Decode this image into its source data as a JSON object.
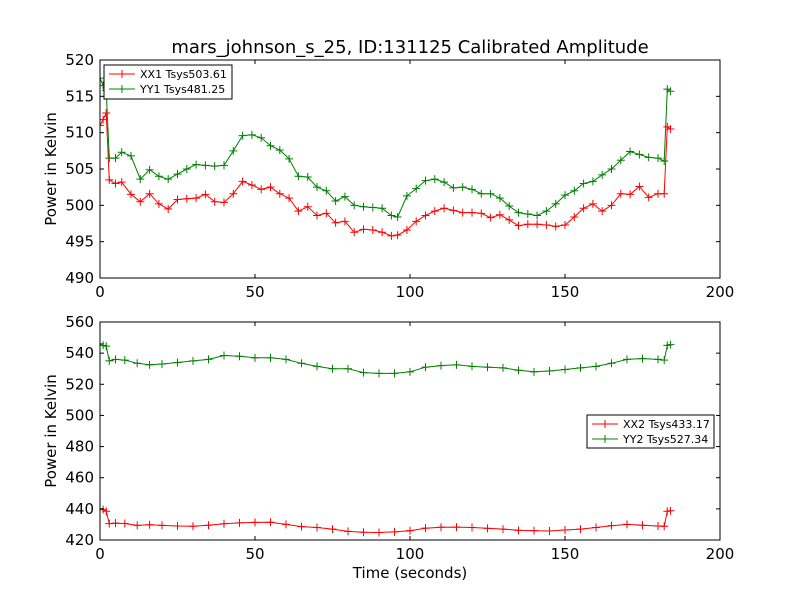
{
  "figure": {
    "title": "mars_johnson_s_25, ID:131125 Calibrated Amplitude",
    "xlabel": "Time (seconds)"
  },
  "chart_data": [
    {
      "type": "line",
      "ylabel": "Power in Kelvin",
      "xlim": [
        0,
        200
      ],
      "ylim": [
        490,
        520
      ],
      "xticks": [
        "0",
        "50",
        "100",
        "150",
        "200"
      ],
      "yticks": [
        "490",
        "495",
        "500",
        "505",
        "510",
        "515",
        "520"
      ],
      "grid": false,
      "legend": "upper-left",
      "series": [
        {
          "name": "XX1 Tsys503.61",
          "color": "#ff0000",
          "marker": "+",
          "x": [
            0,
            1,
            2,
            3,
            5,
            7,
            10,
            13,
            16,
            19,
            22,
            25,
            28,
            31,
            34,
            37,
            40,
            43,
            46,
            49,
            52,
            55,
            58,
            61,
            64,
            67,
            70,
            73,
            76,
            79,
            82,
            85,
            88,
            91,
            94,
            96,
            99,
            102,
            105,
            108,
            111,
            114,
            117,
            120,
            123,
            126,
            129,
            132,
            135,
            138,
            141,
            144,
            147,
            150,
            153,
            156,
            159,
            162,
            165,
            168,
            171,
            174,
            177,
            180,
            182,
            183,
            184
          ],
          "y": [
            511.0,
            511.8,
            512.7,
            503.5,
            503.0,
            503.2,
            501.5,
            500.5,
            501.6,
            500.2,
            499.5,
            500.8,
            500.9,
            501.0,
            501.5,
            500.5,
            500.4,
            501.6,
            503.3,
            502.8,
            502.2,
            502.5,
            501.6,
            501.0,
            499.2,
            499.8,
            498.6,
            498.9,
            497.6,
            497.8,
            496.3,
            496.7,
            496.6,
            496.3,
            495.8,
            495.9,
            496.6,
            497.8,
            498.6,
            499.2,
            499.6,
            499.3,
            499.0,
            499.0,
            498.9,
            498.3,
            498.7,
            498.0,
            497.2,
            497.4,
            497.4,
            497.3,
            497.1,
            497.3,
            498.4,
            499.6,
            500.2,
            499.2,
            500.0,
            501.6,
            501.5,
            502.6,
            501.1,
            501.6,
            501.6,
            510.8,
            510.5
          ]
        },
        {
          "name": "YY1 Tsys481.25",
          "color": "#008000",
          "marker": "+",
          "x": [
            0,
            1,
            2,
            3,
            5,
            7,
            10,
            13,
            16,
            19,
            22,
            25,
            28,
            31,
            34,
            37,
            40,
            43,
            46,
            49,
            52,
            55,
            58,
            61,
            64,
            67,
            70,
            73,
            76,
            79,
            82,
            85,
            88,
            91,
            94,
            96,
            99,
            102,
            105,
            108,
            111,
            114,
            117,
            120,
            123,
            126,
            129,
            132,
            135,
            138,
            141,
            144,
            147,
            150,
            153,
            156,
            159,
            162,
            165,
            168,
            171,
            174,
            177,
            180,
            182,
            183,
            184
          ],
          "y": [
            517.5,
            516.5,
            515.8,
            506.5,
            506.5,
            507.3,
            506.8,
            503.6,
            504.9,
            504.0,
            503.6,
            504.3,
            505.0,
            505.6,
            505.5,
            505.4,
            505.5,
            507.5,
            509.6,
            509.7,
            509.3,
            508.2,
            507.6,
            506.4,
            504.0,
            503.9,
            502.5,
            502.0,
            500.6,
            501.2,
            500.0,
            499.8,
            499.7,
            499.6,
            498.6,
            498.4,
            501.3,
            502.3,
            503.4,
            503.6,
            503.2,
            502.4,
            502.5,
            502.2,
            501.6,
            501.6,
            501.0,
            499.9,
            499.0,
            498.8,
            498.6,
            499.2,
            500.2,
            501.4,
            502.0,
            503.0,
            503.3,
            504.2,
            505.0,
            506.2,
            507.4,
            507.0,
            506.6,
            506.5,
            506.1,
            516.0,
            515.7
          ]
        }
      ]
    },
    {
      "type": "line",
      "ylabel": "Power in Kelvin",
      "xlim": [
        0,
        200
      ],
      "ylim": [
        420,
        560
      ],
      "xticks": [
        "0",
        "50",
        "100",
        "150",
        "200"
      ],
      "yticks": [
        "420",
        "440",
        "460",
        "480",
        "500",
        "520",
        "540",
        "560"
      ],
      "grid": false,
      "legend": "center-right",
      "series": [
        {
          "name": "XX2 Tsys433.17",
          "color": "#ff0000",
          "marker": "+",
          "x": [
            0,
            1,
            2,
            3,
            5,
            8,
            12,
            16,
            20,
            25,
            30,
            35,
            40,
            45,
            50,
            55,
            60,
            65,
            70,
            75,
            80,
            85,
            90,
            95,
            100,
            105,
            110,
            115,
            120,
            125,
            130,
            135,
            140,
            145,
            150,
            155,
            160,
            165,
            170,
            175,
            180,
            182,
            183,
            184
          ],
          "y": [
            440.0,
            439.5,
            438.5,
            430.5,
            430.8,
            430.6,
            429.4,
            429.8,
            429.4,
            429.0,
            428.8,
            429.5,
            430.4,
            431.0,
            431.3,
            431.4,
            430.0,
            428.6,
            428.0,
            427.0,
            425.5,
            425.0,
            424.8,
            425.2,
            426.0,
            427.6,
            428.2,
            428.3,
            428.0,
            427.5,
            427.0,
            426.2,
            426.0,
            425.8,
            426.4,
            427.0,
            428.0,
            429.2,
            430.0,
            429.5,
            429.0,
            428.8,
            438.5,
            438.8
          ]
        },
        {
          "name": "YY2 Tsys527.34",
          "color": "#008000",
          "marker": "+",
          "x": [
            0,
            1,
            2,
            3,
            5,
            8,
            12,
            16,
            20,
            25,
            30,
            35,
            40,
            45,
            50,
            55,
            60,
            65,
            70,
            75,
            80,
            85,
            90,
            95,
            100,
            105,
            110,
            115,
            120,
            125,
            130,
            135,
            140,
            145,
            150,
            155,
            160,
            165,
            170,
            175,
            180,
            182,
            183,
            184
          ],
          "y": [
            546.0,
            545.0,
            544.5,
            535.0,
            536.0,
            535.5,
            533.5,
            532.5,
            533.0,
            534.0,
            535.0,
            536.0,
            538.5,
            538.0,
            537.0,
            537.0,
            536.0,
            533.5,
            531.5,
            530.0,
            530.0,
            527.5,
            527.0,
            527.0,
            528.0,
            531.0,
            532.0,
            532.5,
            531.5,
            531.0,
            530.5,
            529.0,
            528.0,
            528.5,
            529.5,
            530.5,
            531.5,
            533.5,
            536.0,
            536.5,
            536.0,
            535.5,
            545.0,
            545.5
          ]
        }
      ]
    }
  ]
}
